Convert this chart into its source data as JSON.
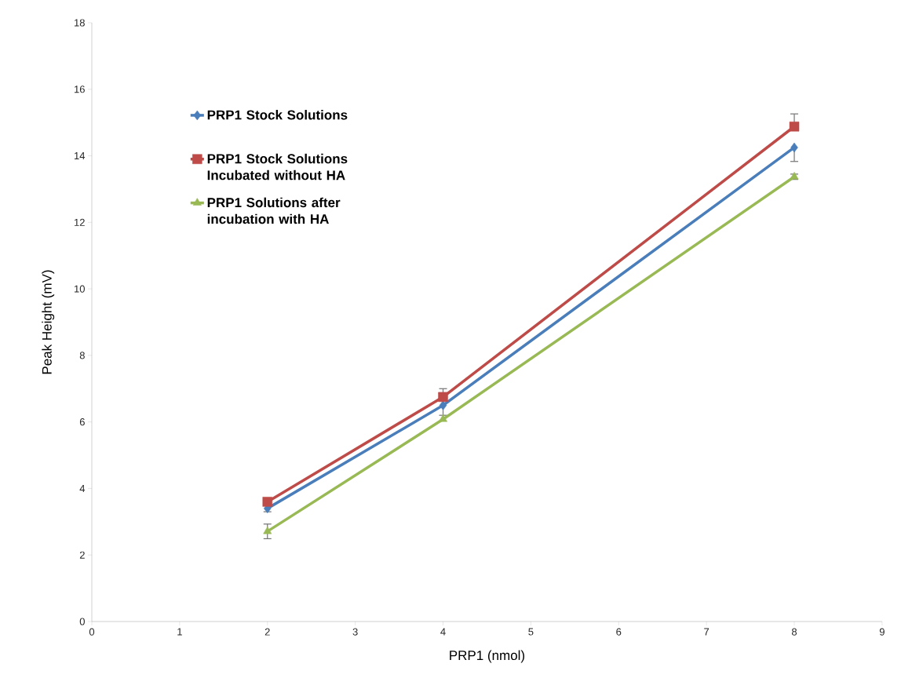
{
  "chart_data": {
    "type": "line",
    "xlabel": "PRP1 (nmol)",
    "ylabel": "Peak Height (mV)",
    "xlim": [
      0,
      9
    ],
    "xticks": [
      0,
      1,
      2,
      3,
      4,
      5,
      6,
      7,
      8,
      9
    ],
    "ylim": [
      0,
      18
    ],
    "yticks": [
      0,
      2,
      4,
      6,
      8,
      10,
      12,
      14,
      16,
      18
    ],
    "grid": false,
    "legend": "top left",
    "line_style": "solid",
    "series": [
      {
        "name": "PRP1 Stock Solutions",
        "color": "#4a7ebb",
        "marker": "diamond",
        "x": [
          2,
          4,
          8
        ],
        "values": [
          3.4,
          6.5,
          14.25
        ],
        "errors": [
          [
            3.3,
            3.4
          ],
          [
            6.2,
            6.5
          ],
          [
            13.83,
            14.25
          ]
        ]
      },
      {
        "name": "PRP1 Stock Solutions Incubated without HA",
        "color": "#be4b48",
        "marker": "square",
        "x": [
          2,
          4,
          8
        ],
        "values": [
          3.6,
          6.75,
          14.88
        ],
        "errors": [
          null,
          [
            6.75,
            7.0
          ],
          [
            14.88,
            15.26
          ]
        ]
      },
      {
        "name": "PRP1 Solutions after incubation with HA",
        "color": "#98b954",
        "marker": "triangle",
        "x": [
          2,
          4,
          8
        ],
        "values": [
          2.71,
          6.08,
          13.37
        ],
        "errors": [
          0.22,
          null,
          0.08
        ]
      }
    ]
  }
}
